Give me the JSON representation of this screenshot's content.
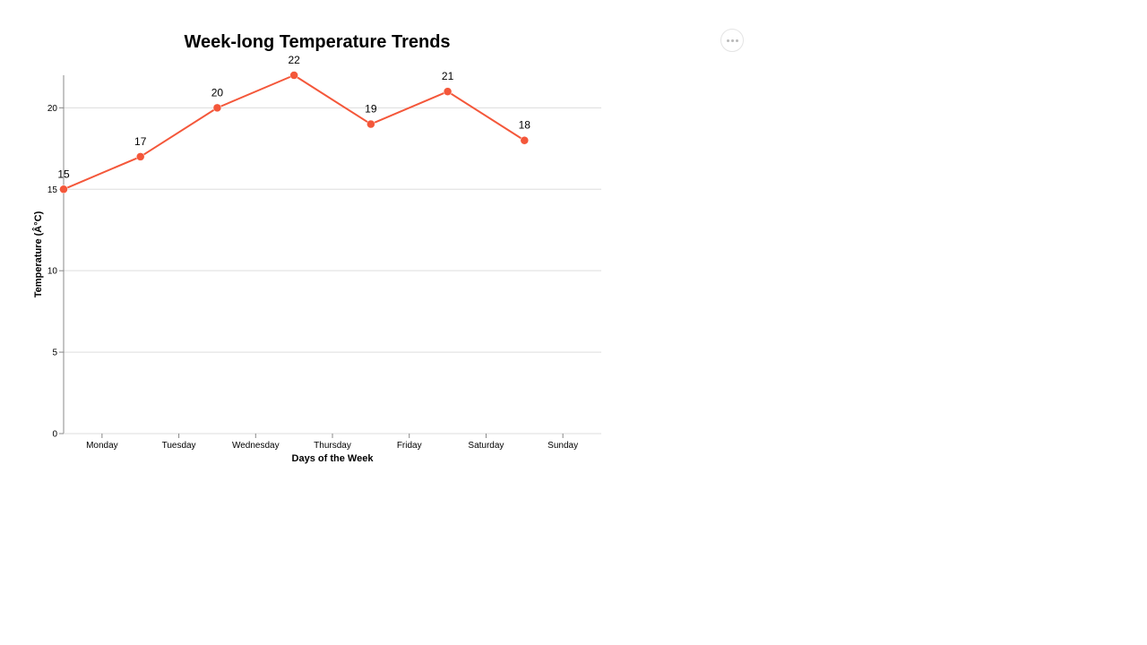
{
  "chart_data": {
    "type": "line",
    "title": "Week-long Temperature Trends",
    "xlabel": "Days of the Week",
    "ylabel": "Temperature (Â°C)",
    "categories": [
      "Monday",
      "Tuesday",
      "Wednesday",
      "Thursday",
      "Friday",
      "Saturday",
      "Sunday"
    ],
    "series": [
      {
        "values": [
          15,
          17,
          20,
          22,
          19,
          21,
          18
        ],
        "color": "#f4573a"
      }
    ],
    "ylim": [
      0,
      22
    ],
    "yticks": [
      0,
      5,
      10,
      15,
      20
    ],
    "grid": true,
    "legend": "none",
    "data_labels": true
  },
  "toolbar": {
    "menu_icon": "more-horizontal-icon"
  }
}
